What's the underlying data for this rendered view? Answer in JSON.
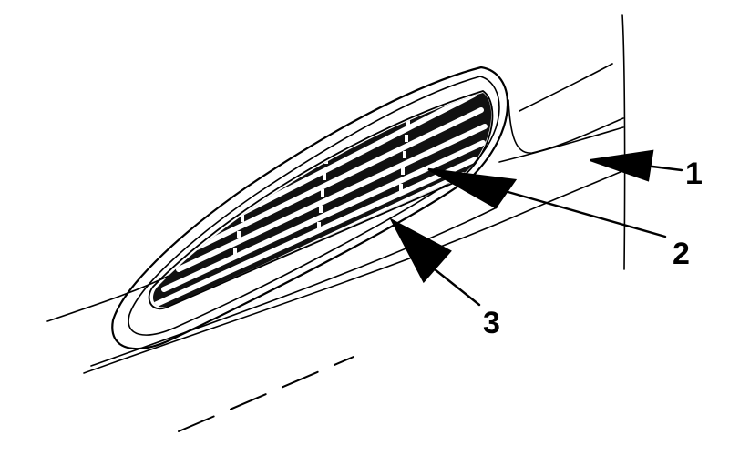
{
  "diagram": {
    "callouts": [
      {
        "id": "1",
        "label": "1"
      },
      {
        "id": "2",
        "label": "2"
      },
      {
        "id": "3",
        "label": "3"
      }
    ],
    "colors": {
      "ink": "#000000",
      "paper": "#ffffff",
      "vent_interior": "#111111"
    }
  }
}
